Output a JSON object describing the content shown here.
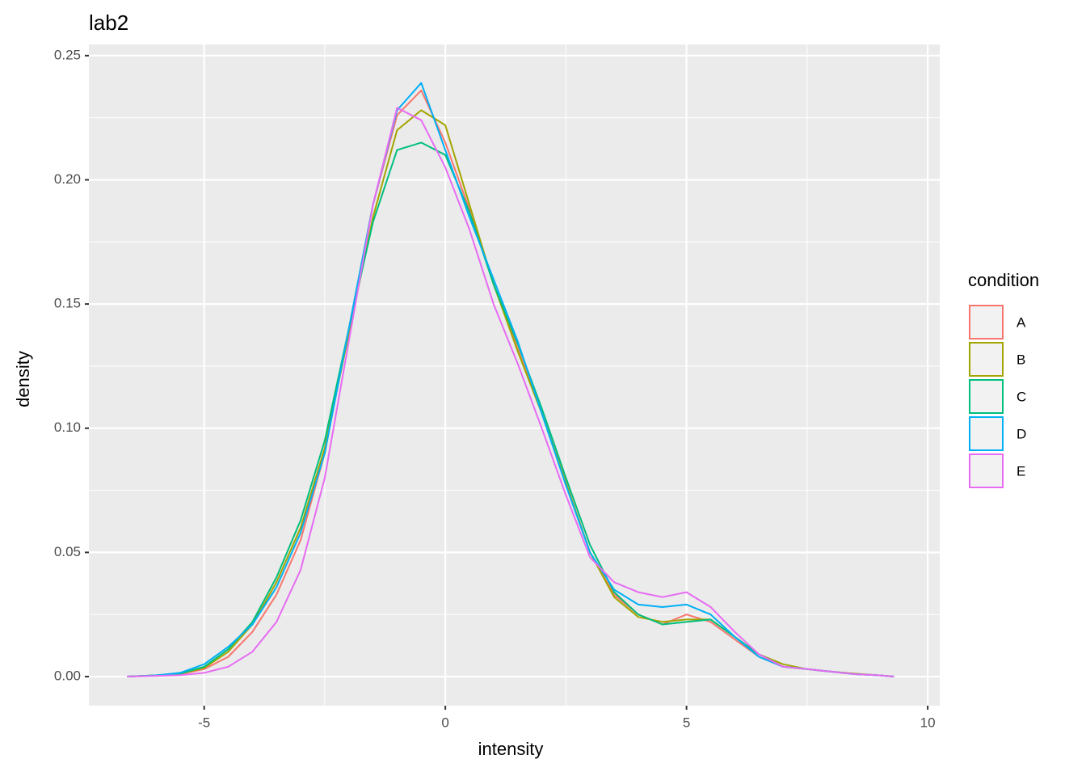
{
  "chart_data": {
    "type": "line",
    "title": "lab2",
    "x_label": "intensity",
    "y_label": "density",
    "legend_title": "condition",
    "legend_position": "right",
    "grid": true,
    "x": [
      -6.6,
      -6,
      -5.5,
      -5,
      -4.5,
      -4,
      -3.5,
      -3,
      -2.5,
      -2,
      -1.5,
      -1,
      -0.5,
      0,
      0.5,
      1,
      1.5,
      2,
      2.5,
      3,
      3.5,
      4,
      4.5,
      5,
      5.5,
      6,
      6.5,
      7,
      7.5,
      8,
      8.5,
      9,
      9.3
    ],
    "series": [
      {
        "name": "A",
        "color": "#F8766D",
        "values": [
          0,
          0.0005,
          0.001,
          0.003,
          0.008,
          0.018,
          0.033,
          0.055,
          0.09,
          0.14,
          0.19,
          0.226,
          0.236,
          0.215,
          0.188,
          0.158,
          0.132,
          0.106,
          0.078,
          0.05,
          0.033,
          0.025,
          0.021,
          0.025,
          0.022,
          0.015,
          0.008,
          0.004,
          0.003,
          0.002,
          0.001,
          0.0005,
          0
        ]
      },
      {
        "name": "B",
        "color": "#A3A500",
        "values": [
          0,
          0.0005,
          0.0012,
          0.0035,
          0.01,
          0.021,
          0.038,
          0.06,
          0.092,
          0.138,
          0.185,
          0.22,
          0.228,
          0.222,
          0.19,
          0.158,
          0.131,
          0.106,
          0.078,
          0.05,
          0.032,
          0.024,
          0.022,
          0.023,
          0.023,
          0.016,
          0.009,
          0.005,
          0.003,
          0.002,
          0.0012,
          0.0005,
          0
        ]
      },
      {
        "name": "C",
        "color": "#00BF7D",
        "values": [
          0,
          0.0005,
          0.0012,
          0.004,
          0.011,
          0.022,
          0.04,
          0.063,
          0.095,
          0.14,
          0.183,
          0.212,
          0.215,
          0.21,
          0.187,
          0.158,
          0.134,
          0.108,
          0.08,
          0.053,
          0.034,
          0.025,
          0.021,
          0.022,
          0.023,
          0.016,
          0.009,
          0.004,
          0.003,
          0.002,
          0.001,
          0.0005,
          0
        ]
      },
      {
        "name": "D",
        "color": "#00B0F6",
        "values": [
          0,
          0.0005,
          0.0015,
          0.005,
          0.012,
          0.021,
          0.036,
          0.058,
          0.09,
          0.14,
          0.19,
          0.228,
          0.239,
          0.212,
          0.185,
          0.16,
          0.135,
          0.106,
          0.077,
          0.05,
          0.035,
          0.029,
          0.028,
          0.029,
          0.025,
          0.016,
          0.008,
          0.004,
          0.003,
          0.002,
          0.001,
          0.0005,
          0
        ]
      },
      {
        "name": "E",
        "color": "#E76BF3",
        "values": [
          0,
          0.0003,
          0.0006,
          0.0015,
          0.004,
          0.01,
          0.022,
          0.043,
          0.08,
          0.135,
          0.19,
          0.229,
          0.224,
          0.205,
          0.18,
          0.15,
          0.126,
          0.1,
          0.073,
          0.048,
          0.038,
          0.034,
          0.032,
          0.034,
          0.028,
          0.018,
          0.009,
          0.004,
          0.003,
          0.002,
          0.001,
          0.0005,
          0
        ]
      }
    ],
    "xlim": [
      -7.39,
      10.25
    ],
    "xticks": [
      -5,
      0,
      5,
      10
    ],
    "ylim": [
      -0.0117,
      0.2545
    ],
    "yticks": [
      {
        "value": 0,
        "label": "0.00"
      },
      {
        "value": 0.05,
        "label": "0.05"
      },
      {
        "value": 0.1,
        "label": "0.10"
      },
      {
        "value": 0.15,
        "label": "0.15"
      },
      {
        "value": 0.2,
        "label": "0.20"
      },
      {
        "value": 0.25,
        "label": "0.25"
      }
    ]
  }
}
